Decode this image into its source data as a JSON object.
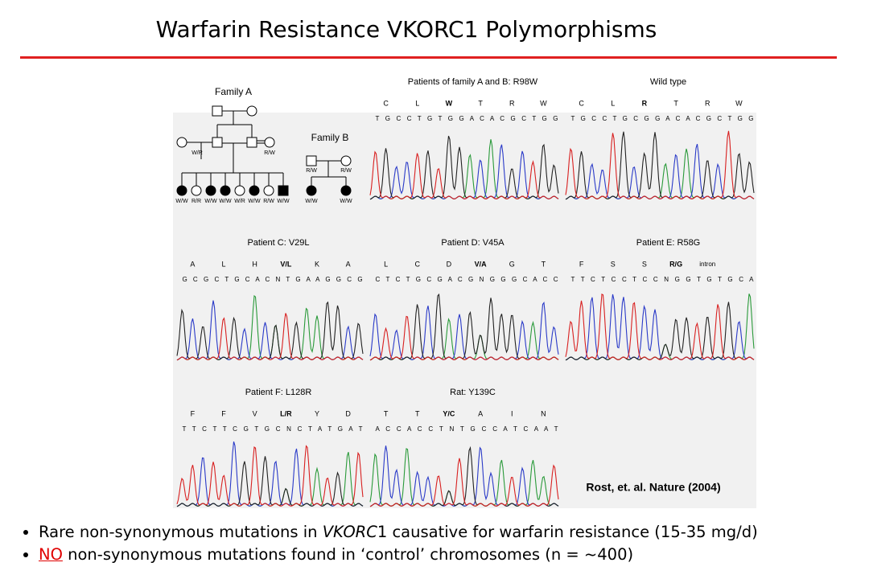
{
  "title": "Warfarin Resistance VKORC1 Polymorphisms",
  "figure": {
    "pedigree": {
      "family_a": "Family A",
      "family_b": "Family B",
      "family_a_parents": [
        "W/R",
        "R/W"
      ],
      "family_a_children": [
        "W/W",
        "R/R",
        "W/W",
        "W/W",
        "W/R",
        "W/W",
        "R/W",
        "W/W"
      ],
      "family_b_parents": [
        "R/W",
        "R/W"
      ],
      "family_b_children": [
        "W/W",
        "W/W"
      ]
    },
    "panels": [
      {
        "title": "Patients of family A and B: R98W",
        "residues": [
          "C",
          "L",
          "W",
          "T",
          "R",
          "W"
        ],
        "highlight": 2,
        "sequence": "T G C C T G T G G A C A C G C T G G"
      },
      {
        "title": "Wild type",
        "residues": [
          "C",
          "L",
          "R",
          "T",
          "R",
          "W"
        ],
        "highlight": 2,
        "sequence": "T G C C T G C G G A C A C G C T G G"
      },
      {
        "title": "Patient C: V29L",
        "residues": [
          "A",
          "L",
          "H",
          "V/L",
          "K",
          "A"
        ],
        "highlight": 3,
        "sequence": "G C G C T G C A C N T G A A G G C G"
      },
      {
        "title": "Patient D: V45A",
        "residues": [
          "L",
          "C",
          "D",
          "V/A",
          "G",
          "T"
        ],
        "highlight": 3,
        "sequence": "C T C T G C G A C G N G G G C A C C"
      },
      {
        "title": "Patient E: R58G",
        "residues": [
          "F",
          "S",
          "S",
          "R/G",
          "intron"
        ],
        "highlight": 3,
        "sequence": "T T C T C C T C C N G G T G T G C A"
      },
      {
        "title": "Patient F: L128R",
        "residues": [
          "F",
          "F",
          "V",
          "L/R",
          "Y",
          "D"
        ],
        "highlight": 3,
        "sequence": "T T C T T C G T G C N C T A T G A T"
      },
      {
        "title": "Rat: Y139C",
        "residues": [
          "T",
          "T",
          "Y/C",
          "A",
          "I",
          "N"
        ],
        "highlight": 2,
        "sequence": "A C C A C C T N T G C C A T C A A T"
      }
    ],
    "citation": "Rost, et. al. Nature (2004)"
  },
  "bullets": [
    [
      {
        "text": "Rare non-synonymous mutations in "
      },
      {
        "text": "VKORC",
        "style": "italic"
      },
      {
        "text": "1 causative for warfarin resistance (15-35 mg/d)"
      }
    ],
    [
      {
        "text": "NO",
        "style": "red-underline"
      },
      {
        "text": " non-synonymous mutations found in ‘control’ chromosomes (n = ~400)"
      }
    ]
  ]
}
